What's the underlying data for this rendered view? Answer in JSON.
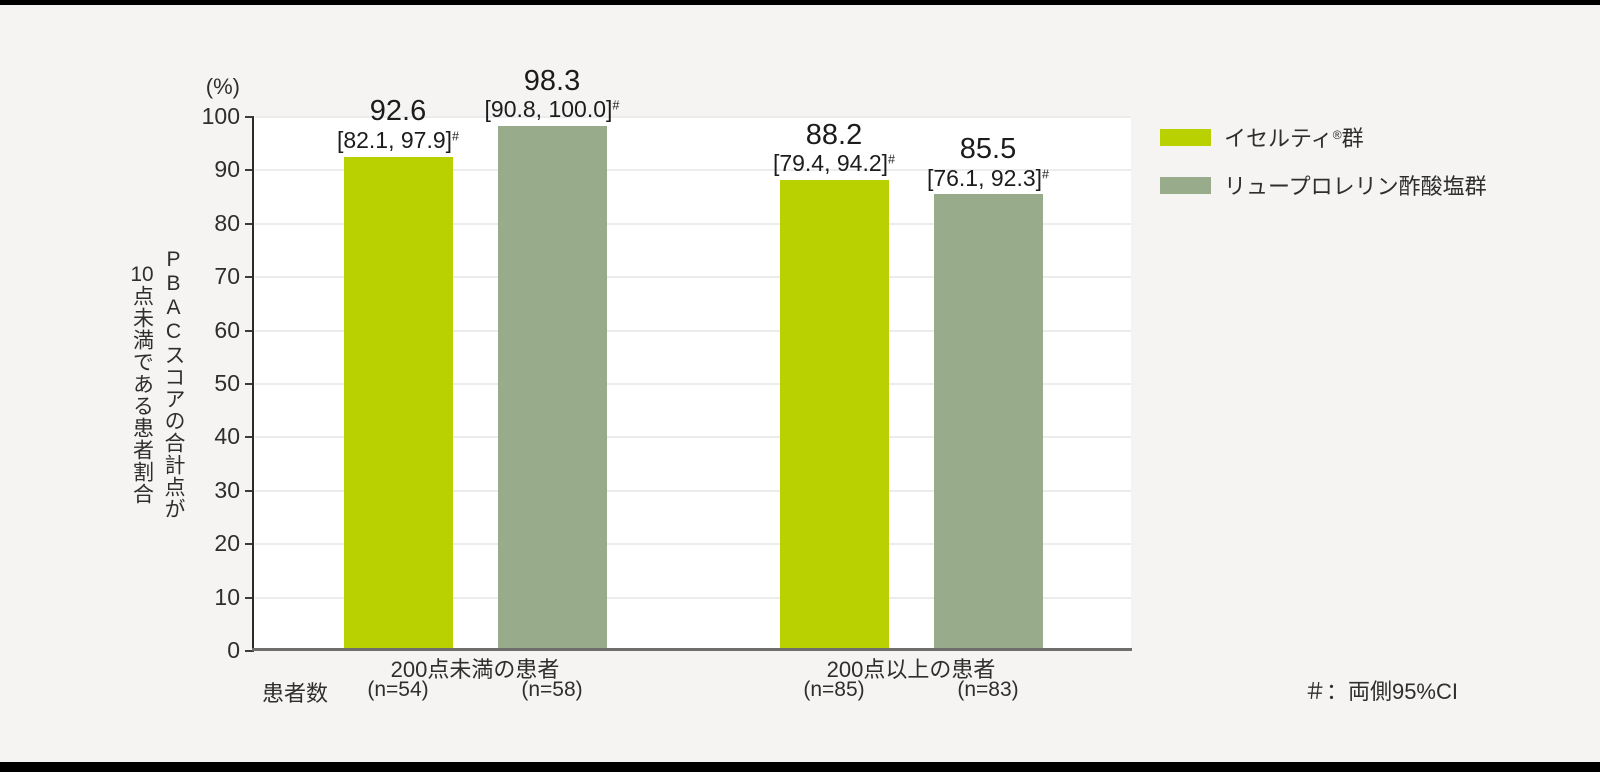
{
  "chart_data": {
    "type": "bar",
    "title": "",
    "unit_label": "(%)",
    "y_axis_title": {
      "line1": "PBACスコアの合計点が",
      "line2_num": "10",
      "line2_rest": "点未満である患者割合"
    },
    "ylim": [
      0,
      100
    ],
    "yticks": [
      0,
      10,
      20,
      30,
      40,
      50,
      60,
      70,
      80,
      90,
      100
    ],
    "grid": true,
    "legend_position": "right",
    "categories": [
      "200点未満の患者",
      "200点以上の患者"
    ],
    "n_row_label": "患者数",
    "series": [
      {
        "name": "イセルティ®群",
        "label_pre": "イセルティ",
        "label_sup": "®",
        "label_post": "群",
        "color": "#b9d101",
        "values": [
          92.6,
          88.2
        ],
        "ci": [
          "[82.1, 97.9]",
          "[79.4, 94.2]"
        ],
        "n": [
          "(n=54)",
          "(n=85)"
        ]
      },
      {
        "name": "リュープロレリン酢酸塩群",
        "label_pre": "リュープロレリン酢酸塩群",
        "label_sup": "",
        "label_post": "",
        "color": "#98ab8a",
        "values": [
          98.3,
          85.5
        ],
        "ci": [
          "[90.8, 100.0]",
          "[76.1, 92.3]"
        ],
        "n": [
          "(n=58)",
          "(n=83)"
        ]
      }
    ],
    "ci_marker": "#",
    "footnote": "＃：両側95%CI"
  },
  "colors": {
    "background": "#f5f4f2",
    "plot_background": "#ffffff",
    "gridline": "#ececec",
    "axis": "#2b2b2b",
    "baseline": "#6e6e6e",
    "text": "#2e2e2e",
    "frame_bars": "#000000"
  }
}
